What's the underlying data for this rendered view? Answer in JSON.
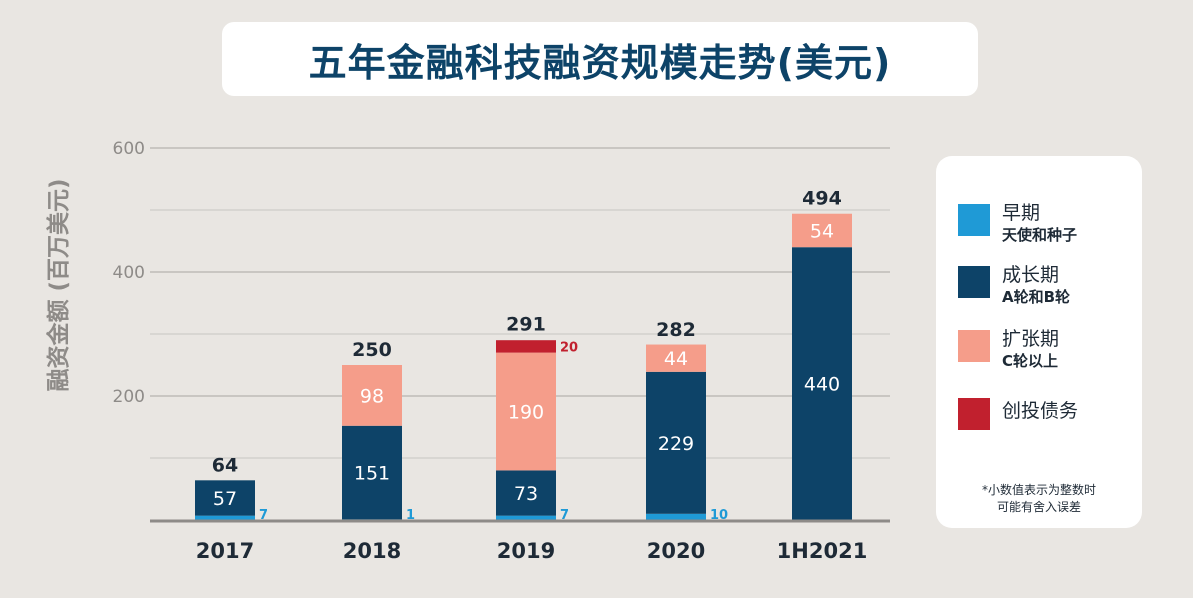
{
  "title": "五年金融科技融资规模走势(美元)",
  "chart_data": {
    "type": "bar",
    "stacked": true,
    "ylabel": "融资金额 (百万美元)",
    "ylim": [
      0,
      600
    ],
    "yticks": [
      200,
      400,
      600
    ],
    "categories": [
      "2017",
      "2018",
      "2019",
      "2020",
      "1H2021"
    ],
    "series": [
      {
        "name": "早期",
        "color": "#1f9ad6",
        "values": [
          7,
          1,
          7,
          10,
          0
        ]
      },
      {
        "name": "成长期",
        "color": "#0d4368",
        "values": [
          57,
          151,
          73,
          229,
          440
        ]
      },
      {
        "name": "扩张期",
        "color": "#f59d8a",
        "values": [
          0,
          98,
          190,
          44,
          54
        ]
      },
      {
        "name": "创投债务",
        "color": "#c1202e",
        "values": [
          0,
          0,
          20,
          0,
          0
        ]
      }
    ],
    "totals": [
      64,
      250,
      291,
      282,
      494
    ]
  },
  "legend": {
    "items": [
      {
        "label": "早期",
        "sub": "天使和种子",
        "color": "#1f9ad6"
      },
      {
        "label": "成长期",
        "sub": "A轮和B轮",
        "color": "#0d4368"
      },
      {
        "label": "扩张期",
        "sub": "C轮以上",
        "color": "#f59d8a"
      },
      {
        "label": "创投债务",
        "sub": "",
        "color": "#c1202e"
      }
    ],
    "note_line1": "*小数值表示为整数时",
    "note_line2": "可能有舍入误差"
  }
}
